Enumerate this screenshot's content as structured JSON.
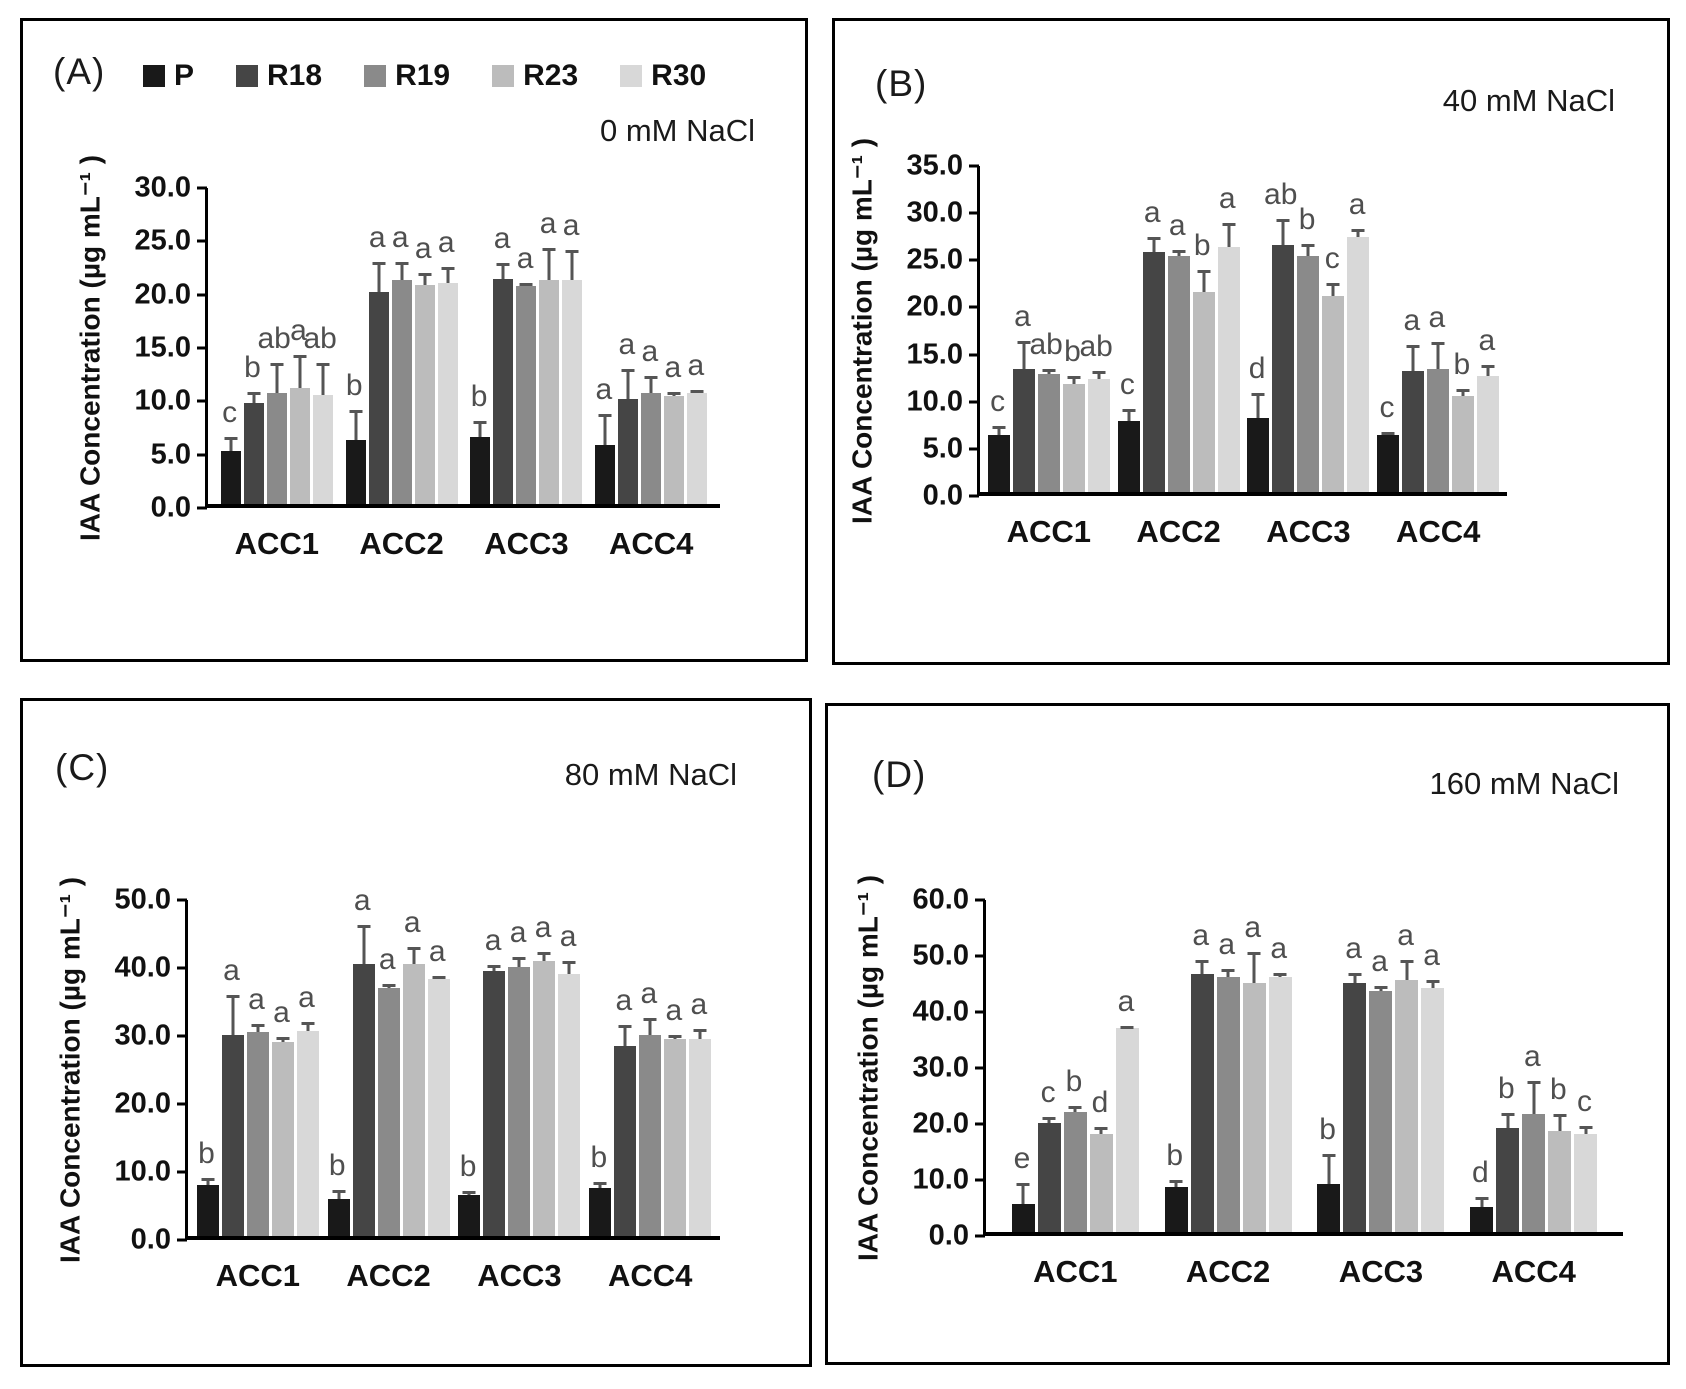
{
  "figure": {
    "panel_labels": [
      "(A)",
      "(B)",
      "(C)",
      "(D)"
    ],
    "conditions": [
      "0 mM NaCl",
      "40 mM NaCl",
      "80 mM NaCl",
      "160 mM NaCl"
    ],
    "ylabel": "IAA Concentration (µg mL⁻¹ )",
    "series_names": [
      "P",
      "R18",
      "R19",
      "R23",
      "R30"
    ],
    "series_colors": [
      "#191919",
      "#454545",
      "#8a8a8a",
      "#bcbcbc",
      "#d8d8d8"
    ],
    "error_bar_color": "#555555",
    "letter_color": "#4f4f4f"
  },
  "chart_data": [
    {
      "type": "bar",
      "panel_label": "(A)",
      "condition": "0 mM NaCl",
      "ylabel": "IAA Concentration (µg mL⁻¹ )",
      "ylim": [
        0,
        30
      ],
      "ystep": 5,
      "legend_position": "top",
      "grid": false,
      "categories": [
        "ACC1",
        "ACC2",
        "ACC3",
        "ACC4"
      ],
      "series": [
        {
          "name": "P",
          "color": "#191919",
          "values": [
            5.0,
            6.0,
            6.3,
            5.5
          ],
          "errors": [
            1.3,
            2.8,
            1.5,
            2.9
          ],
          "letters": [
            "c",
            "b",
            "b",
            "a"
          ]
        },
        {
          "name": "R18",
          "color": "#454545",
          "values": [
            9.5,
            19.9,
            21.1,
            9.8
          ],
          "errors": [
            1.0,
            2.8,
            1.5,
            2.9
          ],
          "letters": [
            "b",
            "a",
            "a",
            "a"
          ]
        },
        {
          "name": "R19",
          "color": "#8a8a8a",
          "values": [
            10.4,
            21.0,
            20.4,
            10.4
          ],
          "errors": [
            2.8,
            1.7,
            0.3,
            1.6
          ],
          "letters": [
            "ab",
            "a",
            "a",
            "a"
          ]
        },
        {
          "name": "R23",
          "color": "#bcbcbc",
          "values": [
            10.9,
            20.5,
            21.0,
            10.1
          ],
          "errors": [
            3.1,
            1.2,
            3.0,
            0.4
          ],
          "letters": [
            "a",
            "a",
            "a",
            "a"
          ]
        },
        {
          "name": "R30",
          "color": "#d8d8d8",
          "values": [
            10.2,
            20.7,
            21.0,
            10.4
          ],
          "errors": [
            3.0,
            1.5,
            2.8,
            0.3
          ],
          "letters": [
            "ab",
            "a",
            "a",
            "a"
          ]
        }
      ]
    },
    {
      "type": "bar",
      "panel_label": "(B)",
      "condition": "40 mM NaCl",
      "ylabel": "IAA Concentration (µg mL⁻¹ )",
      "ylim": [
        0,
        35
      ],
      "ystep": 5,
      "legend_position": "none",
      "grid": false,
      "categories": [
        "ACC1",
        "ACC2",
        "ACC3",
        "ACC4"
      ],
      "series": [
        {
          "name": "P",
          "color": "#191919",
          "values": [
            6.0,
            7.5,
            7.8,
            6.0
          ],
          "errors": [
            1.0,
            1.3,
            2.7,
            0.4
          ],
          "letters": [
            "c",
            "c",
            "d",
            "c"
          ]
        },
        {
          "name": "R18",
          "color": "#454545",
          "values": [
            13.0,
            25.5,
            26.2,
            12.8
          ],
          "errors": [
            3.0,
            1.5,
            2.8,
            2.8
          ],
          "letters": [
            "a",
            "a",
            "ab",
            "a"
          ]
        },
        {
          "name": "R19",
          "color": "#8a8a8a",
          "values": [
            12.5,
            25.0,
            25.0,
            13.0
          ],
          "errors": [
            0.6,
            0.7,
            1.3,
            2.9
          ],
          "letters": [
            "ab",
            "a",
            "b",
            "a"
          ]
        },
        {
          "name": "R23",
          "color": "#bcbcbc",
          "values": [
            11.5,
            21.2,
            20.8,
            10.2
          ],
          "errors": [
            0.8,
            2.3,
            1.4,
            0.7
          ],
          "letters": [
            "b",
            "b",
            "c",
            "b"
          ]
        },
        {
          "name": "R30",
          "color": "#d8d8d8",
          "values": [
            12.0,
            26.0,
            27.0,
            12.3
          ],
          "errors": [
            0.8,
            2.5,
            0.9,
            1.2
          ],
          "letters": [
            "ab",
            "a",
            "a",
            "a"
          ]
        }
      ]
    },
    {
      "type": "bar",
      "panel_label": "(C)",
      "condition": "80 mM NaCl",
      "ylabel": "IAA Concentration (µg mL⁻¹ )",
      "ylim": [
        0,
        50
      ],
      "ystep": 10,
      "legend_position": "none",
      "grid": false,
      "categories": [
        "ACC1",
        "ACC2",
        "ACC3",
        "ACC4"
      ],
      "series": [
        {
          "name": "P",
          "color": "#191919",
          "values": [
            7.5,
            5.5,
            6.0,
            7.0
          ],
          "errors": [
            1.0,
            1.2,
            0.6,
            1.0
          ],
          "letters": [
            "b",
            "b",
            "b",
            "b"
          ]
        },
        {
          "name": "R18",
          "color": "#454545",
          "values": [
            29.5,
            40.0,
            39.0,
            28.0
          ],
          "errors": [
            6.0,
            5.8,
            0.8,
            3.0
          ],
          "letters": [
            "a",
            "a",
            "a",
            "a"
          ]
        },
        {
          "name": "R19",
          "color": "#8a8a8a",
          "values": [
            30.0,
            36.5,
            39.5,
            29.5
          ],
          "errors": [
            1.2,
            0.6,
            1.5,
            2.5
          ],
          "letters": [
            "a",
            "a",
            "a",
            "a"
          ]
        },
        {
          "name": "R23",
          "color": "#bcbcbc",
          "values": [
            28.5,
            40.0,
            40.5,
            29.0
          ],
          "errors": [
            0.8,
            2.5,
            1.2,
            0.5
          ],
          "letters": [
            "a",
            "a",
            "a",
            "a"
          ]
        },
        {
          "name": "R30",
          "color": "#d8d8d8",
          "values": [
            30.2,
            37.8,
            38.5,
            29.0
          ],
          "errors": [
            1.2,
            0.4,
            2.0,
            1.5
          ],
          "letters": [
            "a",
            "a",
            "a",
            "a"
          ]
        }
      ]
    },
    {
      "type": "bar",
      "panel_label": "(D)",
      "condition": "160 mM NaCl",
      "ylabel": "IAA Concentration (µg mL⁻¹ )",
      "ylim": [
        0,
        60
      ],
      "ystep": 10,
      "legend_position": "none",
      "grid": false,
      "categories": [
        "ACC1",
        "ACC2",
        "ACC3",
        "ACC4"
      ],
      "series": [
        {
          "name": "P",
          "color": "#191919",
          "values": [
            5.0,
            8.0,
            8.5,
            4.5
          ],
          "errors": [
            3.8,
            1.2,
            5.5,
            1.8
          ],
          "letters": [
            "e",
            "b",
            "b",
            "d"
          ]
        },
        {
          "name": "R18",
          "color": "#454545",
          "values": [
            19.5,
            46.0,
            44.5,
            18.5
          ],
          "errors": [
            1.0,
            2.5,
            1.8,
            2.8
          ],
          "letters": [
            "c",
            "a",
            "a",
            "b"
          ]
        },
        {
          "name": "R19",
          "color": "#8a8a8a",
          "values": [
            21.5,
            45.5,
            43.0,
            21.0
          ],
          "errors": [
            1.0,
            1.5,
            1.0,
            6.0
          ],
          "letters": [
            "b",
            "a",
            "a",
            "a"
          ]
        },
        {
          "name": "R23",
          "color": "#bcbcbc",
          "values": [
            17.5,
            44.5,
            45.0,
            18.0
          ],
          "errors": [
            1.3,
            5.5,
            3.5,
            3.0
          ],
          "letters": [
            "d",
            "a",
            "a",
            "b"
          ]
        },
        {
          "name": "R30",
          "color": "#d8d8d8",
          "values": [
            36.5,
            45.5,
            43.5,
            17.5
          ],
          "errors": [
            0.3,
            0.7,
            1.5,
            1.5
          ],
          "letters": [
            "a",
            "a",
            "a",
            "c"
          ]
        }
      ]
    }
  ]
}
